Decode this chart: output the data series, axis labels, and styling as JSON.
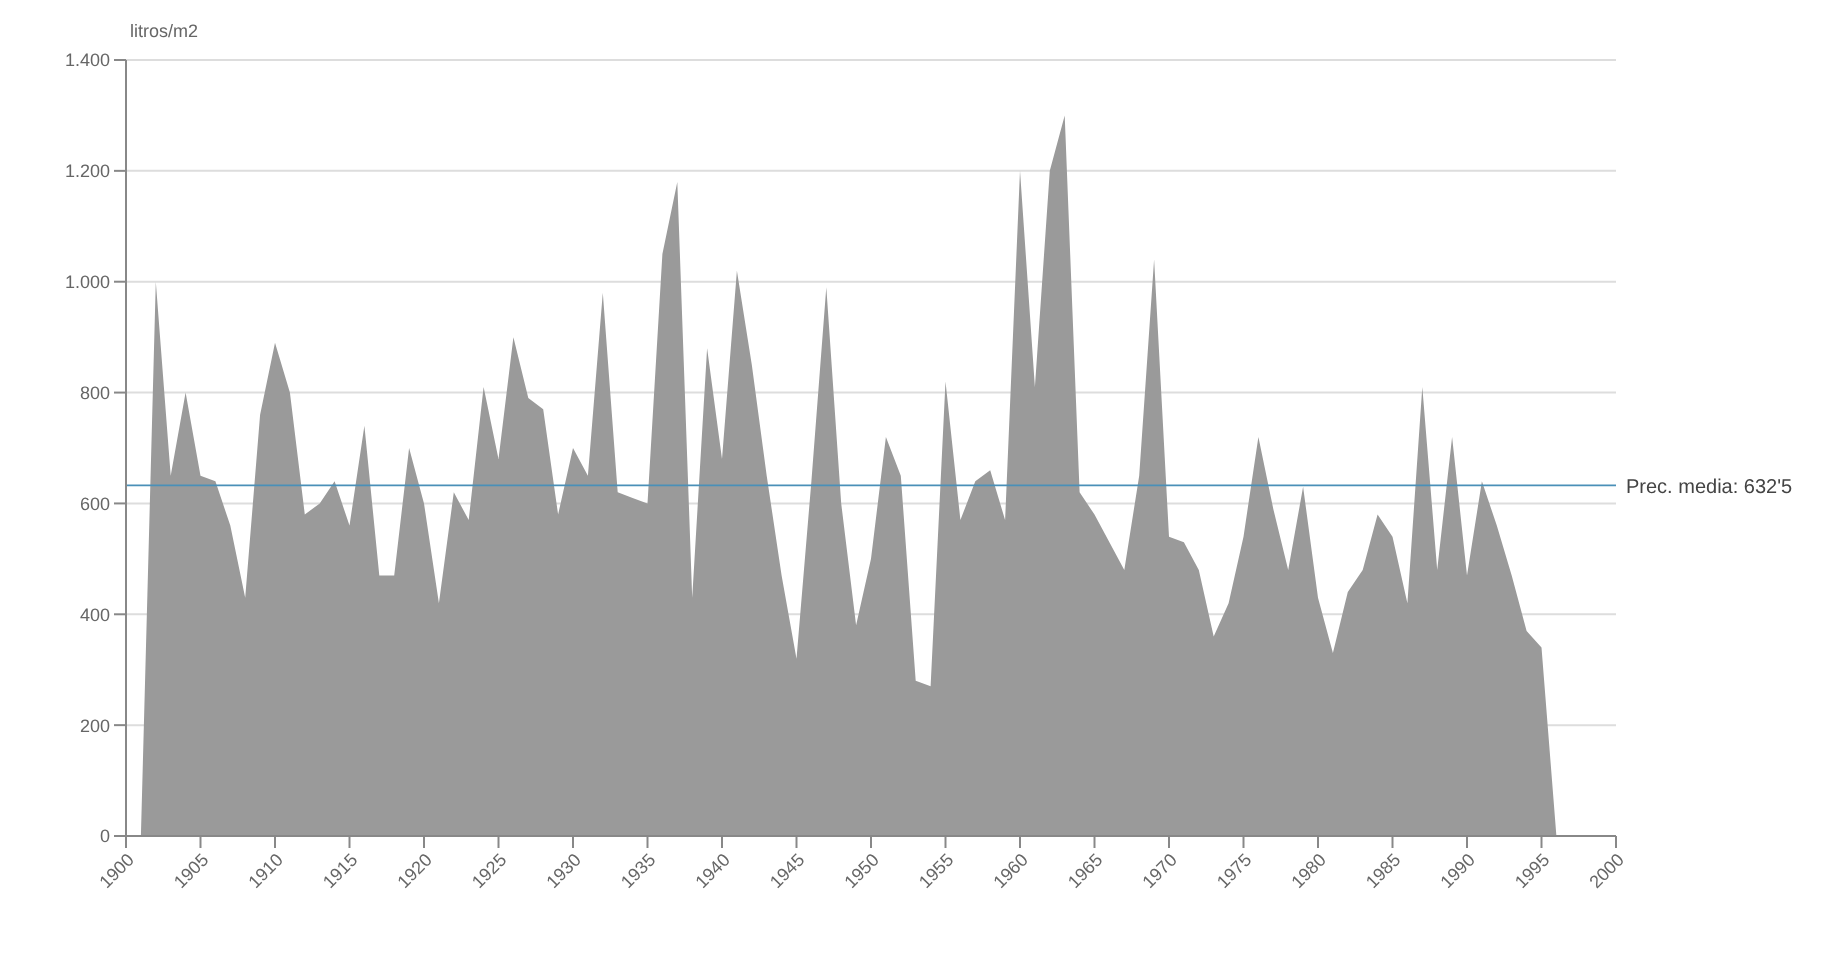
{
  "chart_data": {
    "type": "area",
    "ylabel": "litros/m2",
    "x": [
      1901,
      1902,
      1903,
      1904,
      1905,
      1906,
      1907,
      1908,
      1909,
      1910,
      1911,
      1912,
      1913,
      1914,
      1915,
      1916,
      1917,
      1918,
      1919,
      1920,
      1921,
      1922,
      1923,
      1924,
      1925,
      1926,
      1927,
      1928,
      1929,
      1930,
      1931,
      1932,
      1933,
      1934,
      1935,
      1936,
      1937,
      1938,
      1939,
      1940,
      1941,
      1942,
      1943,
      1944,
      1945,
      1946,
      1947,
      1948,
      1949,
      1950,
      1951,
      1952,
      1953,
      1954,
      1955,
      1956,
      1957,
      1958,
      1959,
      1960,
      1961,
      1962,
      1963,
      1964,
      1965,
      1966,
      1967,
      1968,
      1969,
      1970,
      1971,
      1972,
      1973,
      1974,
      1975,
      1976,
      1977,
      1978,
      1979,
      1980,
      1981,
      1982,
      1983,
      1984,
      1985,
      1986,
      1987,
      1988,
      1989,
      1990,
      1991,
      1992,
      1993,
      1994,
      1995,
      1996
    ],
    "series": [
      {
        "color": "#9a9a9a",
        "values": [
          0,
          1000,
          650,
          800,
          650,
          640,
          560,
          430,
          760,
          890,
          800,
          580,
          600,
          640,
          560,
          740,
          470,
          470,
          700,
          600,
          420,
          620,
          570,
          810,
          680,
          900,
          790,
          770,
          580,
          700,
          650,
          980,
          620,
          610,
          600,
          1050,
          1180,
          430,
          880,
          680,
          1020,
          850,
          650,
          470,
          320,
          640,
          990,
          600,
          380,
          500,
          720,
          650,
          280,
          270,
          820,
          570,
          640,
          660,
          570,
          1200,
          810,
          1200,
          1300,
          620,
          580,
          530,
          480,
          650,
          1040,
          540,
          530,
          480,
          360,
          420,
          540,
          720,
          590,
          480,
          630,
          430,
          330,
          440,
          480,
          580,
          540,
          420,
          810,
          480,
          720,
          470,
          640,
          560,
          470,
          370,
          340,
          0
        ]
      }
    ],
    "xlim": [
      1900,
      2000
    ],
    "xticks": [
      1900,
      1905,
      1910,
      1915,
      1920,
      1925,
      1930,
      1935,
      1940,
      1945,
      1950,
      1955,
      1960,
      1965,
      1970,
      1975,
      1980,
      1985,
      1990,
      1995,
      2000
    ],
    "ylim": [
      0,
      1400
    ],
    "yticks": [
      0,
      200,
      400,
      600,
      800,
      {
        "value": 1000,
        "label": "1.000"
      },
      {
        "value": 1200,
        "label": "1.200"
      },
      {
        "value": 1400,
        "label": "1.400"
      }
    ],
    "grid": "y",
    "ref_lines": [
      {
        "axis": "y",
        "value": 632.5,
        "label": "Prec. media: 632'5",
        "color": "#4a90b8"
      }
    ]
  }
}
